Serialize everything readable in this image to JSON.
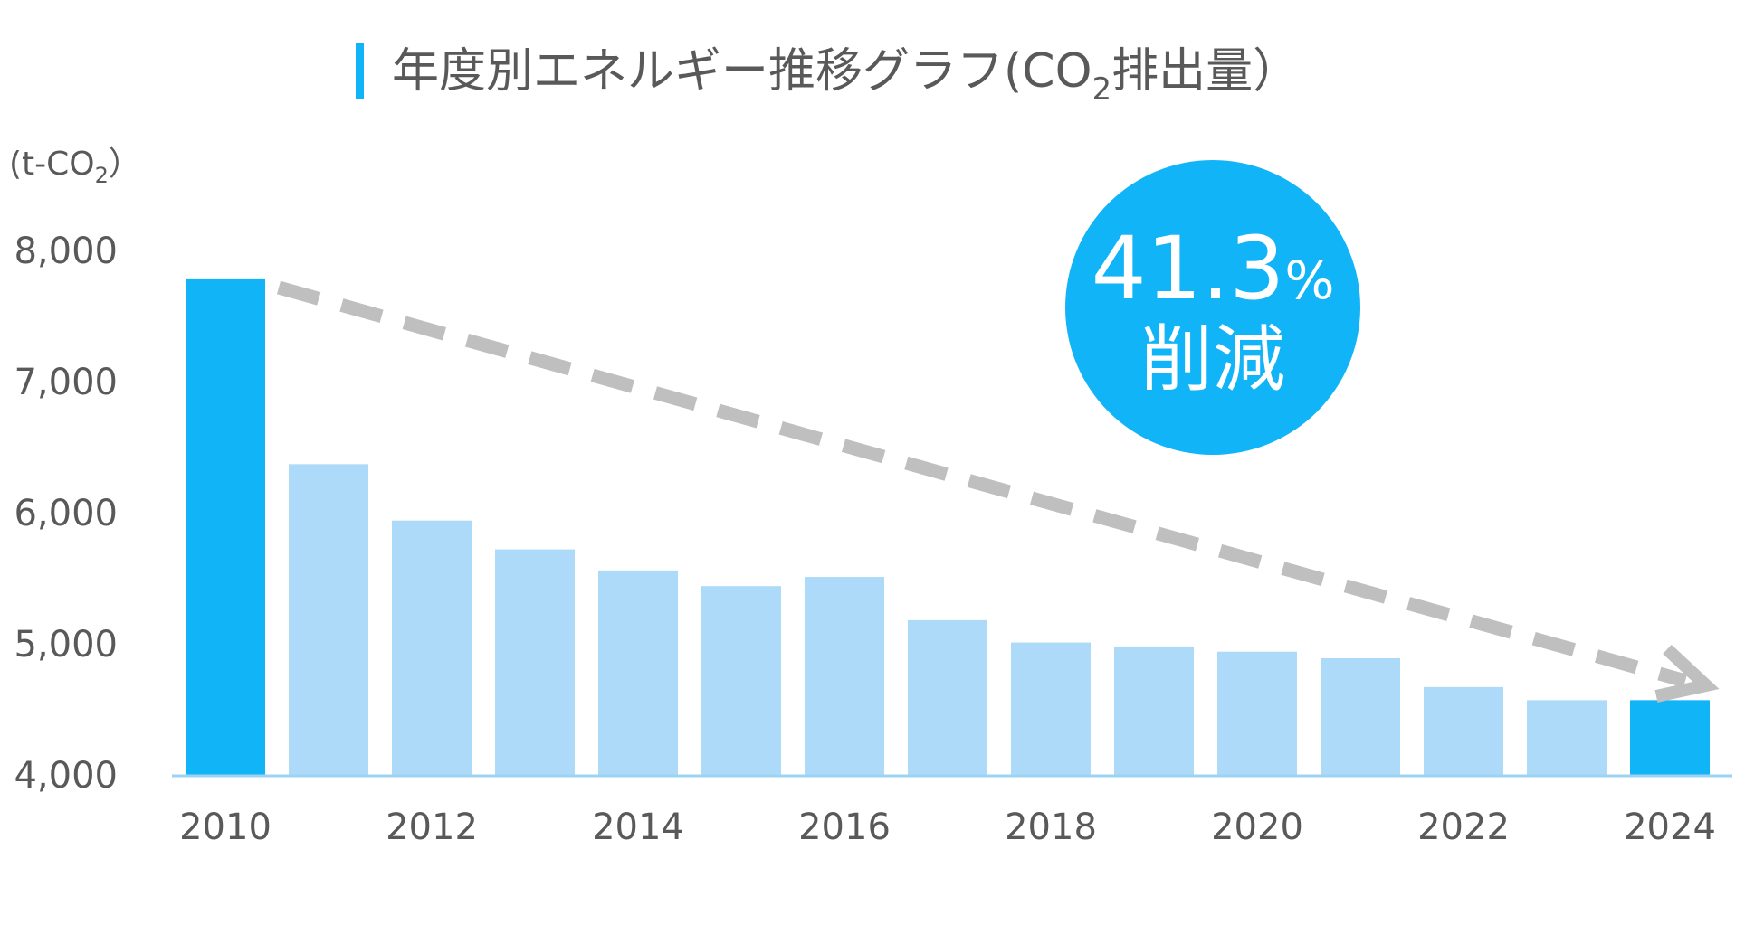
{
  "chart_data": {
    "type": "bar",
    "title": "年度別エネルギー推移グラフ(CO",
    "title_subscript": "2",
    "title_suffix": "排出量）",
    "unit_label": "(t-CO",
    "unit_subscript": "2",
    "unit_suffix": "）",
    "ylim": [
      4000,
      8000
    ],
    "y_ticks": [
      4000,
      5000,
      6000,
      7000,
      8000
    ],
    "y_tick_labels": [
      "4,000",
      "5,000",
      "6,000",
      "7,000",
      "8,000"
    ],
    "categories": [
      "2010",
      "2011",
      "2012",
      "2013",
      "2014",
      "2015",
      "2016",
      "2017",
      "2018",
      "2019",
      "2020",
      "2021",
      "2022",
      "2023",
      "2024"
    ],
    "x_tick_labels": [
      "2010",
      "",
      "2012",
      "",
      "2014",
      "",
      "2016",
      "",
      "2018",
      "",
      "2020",
      "",
      "2022",
      "",
      "2024"
    ],
    "values": [
      7780,
      6370,
      5940,
      5720,
      5560,
      5440,
      5510,
      5180,
      5010,
      4980,
      4940,
      4890,
      4670,
      4570,
      4570
    ],
    "highlighted": [
      true,
      false,
      false,
      false,
      false,
      false,
      false,
      false,
      false,
      false,
      false,
      false,
      false,
      false,
      true
    ],
    "annotation": {
      "percent_value": "41.3",
      "percent_sign": "%",
      "label": "削減"
    },
    "grid": false,
    "legend": "none"
  },
  "colors": {
    "highlight_bar": "#12b4f8",
    "normal_bar": "#acdaf8",
    "accent": "#12b4f8",
    "trend_arrow": "#bfbfbf",
    "axis_line": "#9dd4f3",
    "text": "#595959",
    "badge_text": "#ffffff"
  },
  "icons": {
    "title_marker": "vertical-bar-marker",
    "trend": "dashed-arrow-icon"
  }
}
